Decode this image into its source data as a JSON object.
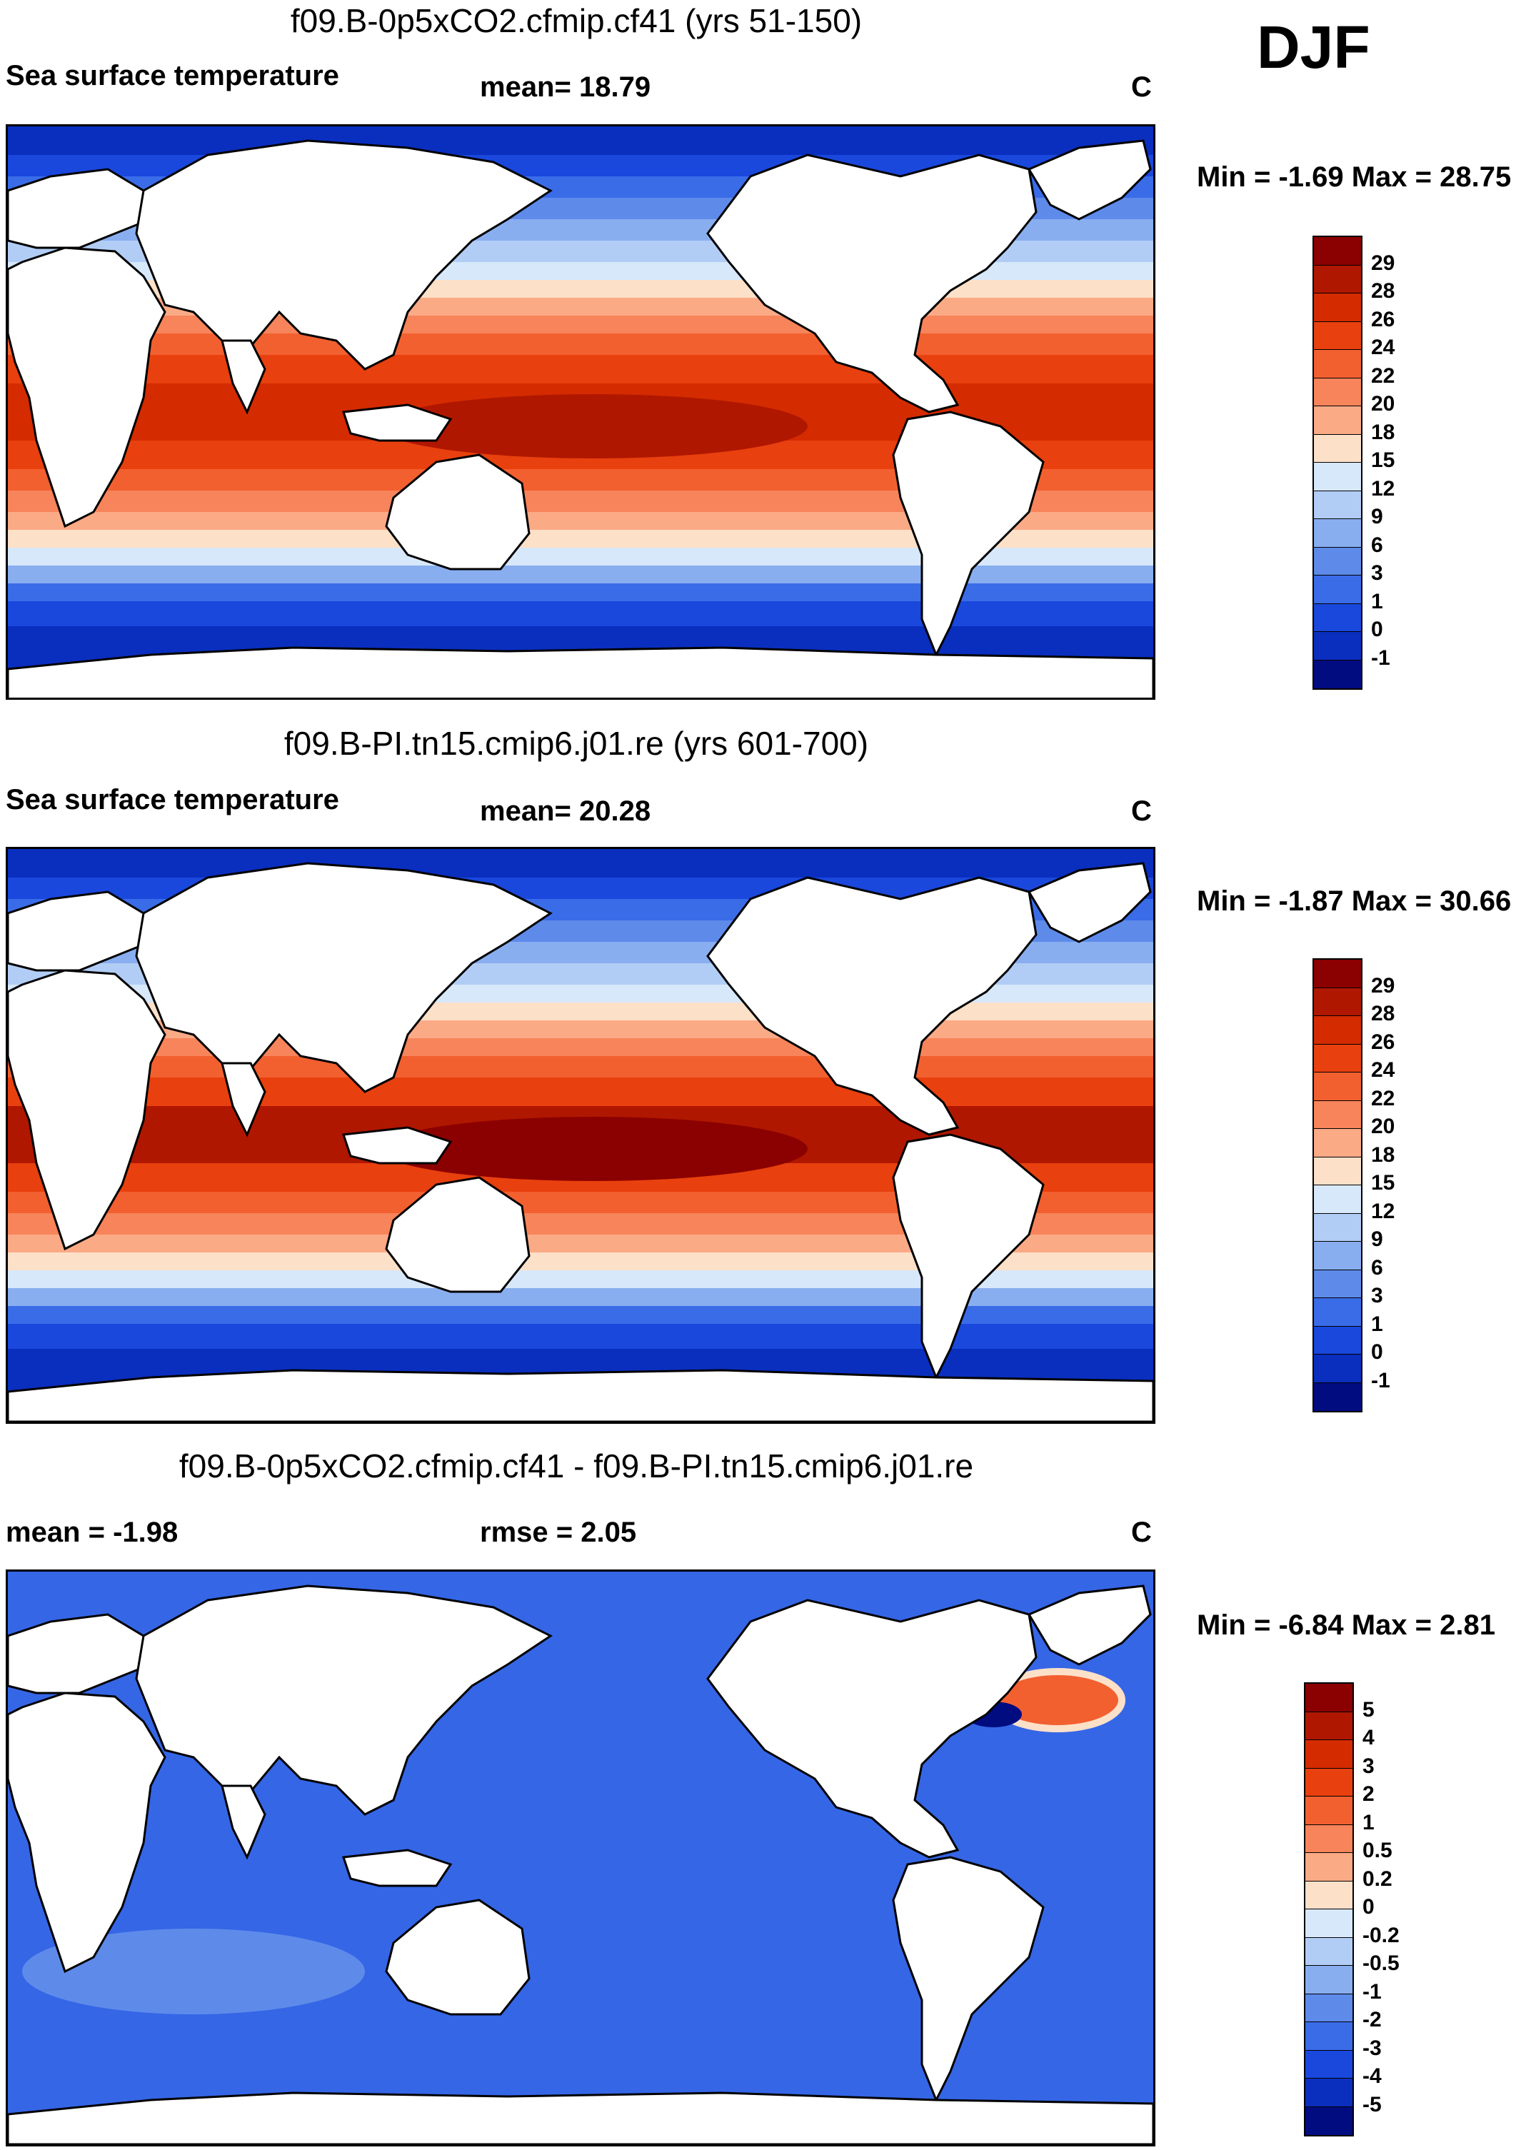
{
  "season": "DJF",
  "panels": [
    {
      "title": "f09.B-0p5xCO2.cfmip.cf41 (yrs 51-150)",
      "left_label": "Sea surface temperature",
      "mean_label": "mean=  18.79",
      "unit": "C",
      "minmax": "Min =  -1.69 Max =  28.75",
      "colorbar": {
        "colors": [
          "#8b0000",
          "#b01700",
          "#d42b00",
          "#e8400e",
          "#f26030",
          "#f7845a",
          "#fbaa86",
          "#fde0c8",
          "#d7e8fa",
          "#b2cdf5",
          "#89aef0",
          "#5e8bea",
          "#3a6ce8",
          "#1a48dd",
          "#0a2fbf",
          "#000c80"
        ],
        "ticks": [
          "29",
          "28",
          "26",
          "24",
          "22",
          "20",
          "18",
          "15",
          "12",
          "9",
          "6",
          "3",
          "1",
          "0",
          "-1"
        ]
      }
    },
    {
      "title": "f09.B-PI.tn15.cmip6.j01.re (yrs 601-700)",
      "left_label": "Sea surface temperature",
      "mean_label": "mean=  20.28",
      "unit": "C",
      "minmax": "Min =  -1.87 Max =  30.66",
      "colorbar": {
        "colors": [
          "#8b0000",
          "#b01700",
          "#d42b00",
          "#e8400e",
          "#f26030",
          "#f7845a",
          "#fbaa86",
          "#fde0c8",
          "#d7e8fa",
          "#b2cdf5",
          "#89aef0",
          "#5e8bea",
          "#3a6ce8",
          "#1a48dd",
          "#0a2fbf",
          "#000c80"
        ],
        "ticks": [
          "29",
          "28",
          "26",
          "24",
          "22",
          "20",
          "18",
          "15",
          "12",
          "9",
          "6",
          "3",
          "1",
          "0",
          "-1"
        ]
      }
    },
    {
      "title": "f09.B-0p5xCO2.cfmip.cf41 - f09.B-PI.tn15.cmip6.j01.re",
      "left_label": "mean =  -1.98",
      "mean_label": "rmse =   2.05",
      "unit": "C",
      "minmax": "Min =  -6.84 Max =   2.81",
      "colorbar": {
        "colors": [
          "#8b0000",
          "#b01700",
          "#d42b00",
          "#e8400e",
          "#f26030",
          "#f7845a",
          "#fbaa86",
          "#fde0c8",
          "#d7e8fa",
          "#b2cdf5",
          "#89aef0",
          "#5e8bea",
          "#3a6ce8",
          "#1a48dd",
          "#0a2fbf",
          "#000c80"
        ],
        "ticks": [
          "5",
          "4",
          "3",
          "2",
          "1",
          "0.5",
          "0.2",
          "0",
          "-0.2",
          "-0.5",
          "-1",
          "-2",
          "-3",
          "-4",
          "-5"
        ]
      }
    }
  ],
  "colors": {
    "ocean_diff": "#3566e6",
    "land": "#ffffff",
    "coast": "#000000"
  }
}
